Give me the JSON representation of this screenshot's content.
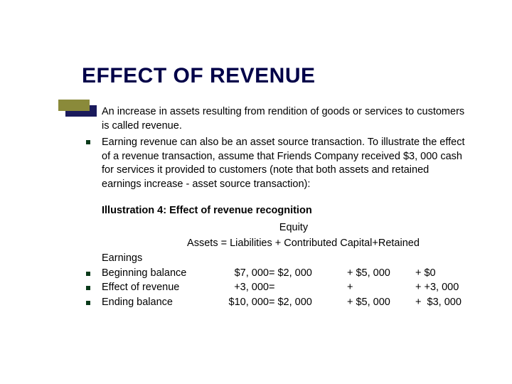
{
  "colors": {
    "title_color": "#000048",
    "bullet_color": "#0a3a1a",
    "bar_olive": "#8a8a3a",
    "bar_navy": "#1a1a5c",
    "background": "#ffffff",
    "text": "#000000"
  },
  "typography": {
    "title_fontsize_pt": 30,
    "title_weight": "bold",
    "body_fontsize_pt": 14.5,
    "body_family": "Verdana",
    "title_family": "Arial"
  },
  "title": "EFFECT OF REVENUE",
  "bullets": [
    "An increase in assets resulting from rendition of goods or services to customers is called revenue.",
    "Earning revenue can also be an asset source transaction. To illustrate the effect of a revenue transaction, assume that Friends Company received $3, 000 cash for services it provided to customers (note that both assets and retained earnings increase - asset source transaction):"
  ],
  "illustration": {
    "heading": "Illustration 4: Effect of revenue recognition",
    "equity_label_line": "                                                              Equity",
    "equation_line": "                              Assets = Liabilities + Contributed Capital+Retained",
    "earnings_label": "Earnings",
    "table": {
      "type": "table",
      "rows": [
        {
          "label": "Beginning balance",
          "assets": "$7, 000",
          "liabilities": "= $2, 000 ",
          "contributed_capital": "+ $5, 000",
          "retained_earnings": "+ $0"
        },
        {
          "label": "Effect of revenue",
          "assets": "+3, 000",
          "liabilities": "=           ",
          "contributed_capital": "+",
          "retained_earnings": "+ +3, 000"
        },
        {
          "label": "Ending balance",
          "assets": "$10, 000",
          "liabilities": "= $2, 000 ",
          "contributed_capital": "+ $5, 000",
          "retained_earnings": "+  $3, 000"
        }
      ]
    }
  }
}
